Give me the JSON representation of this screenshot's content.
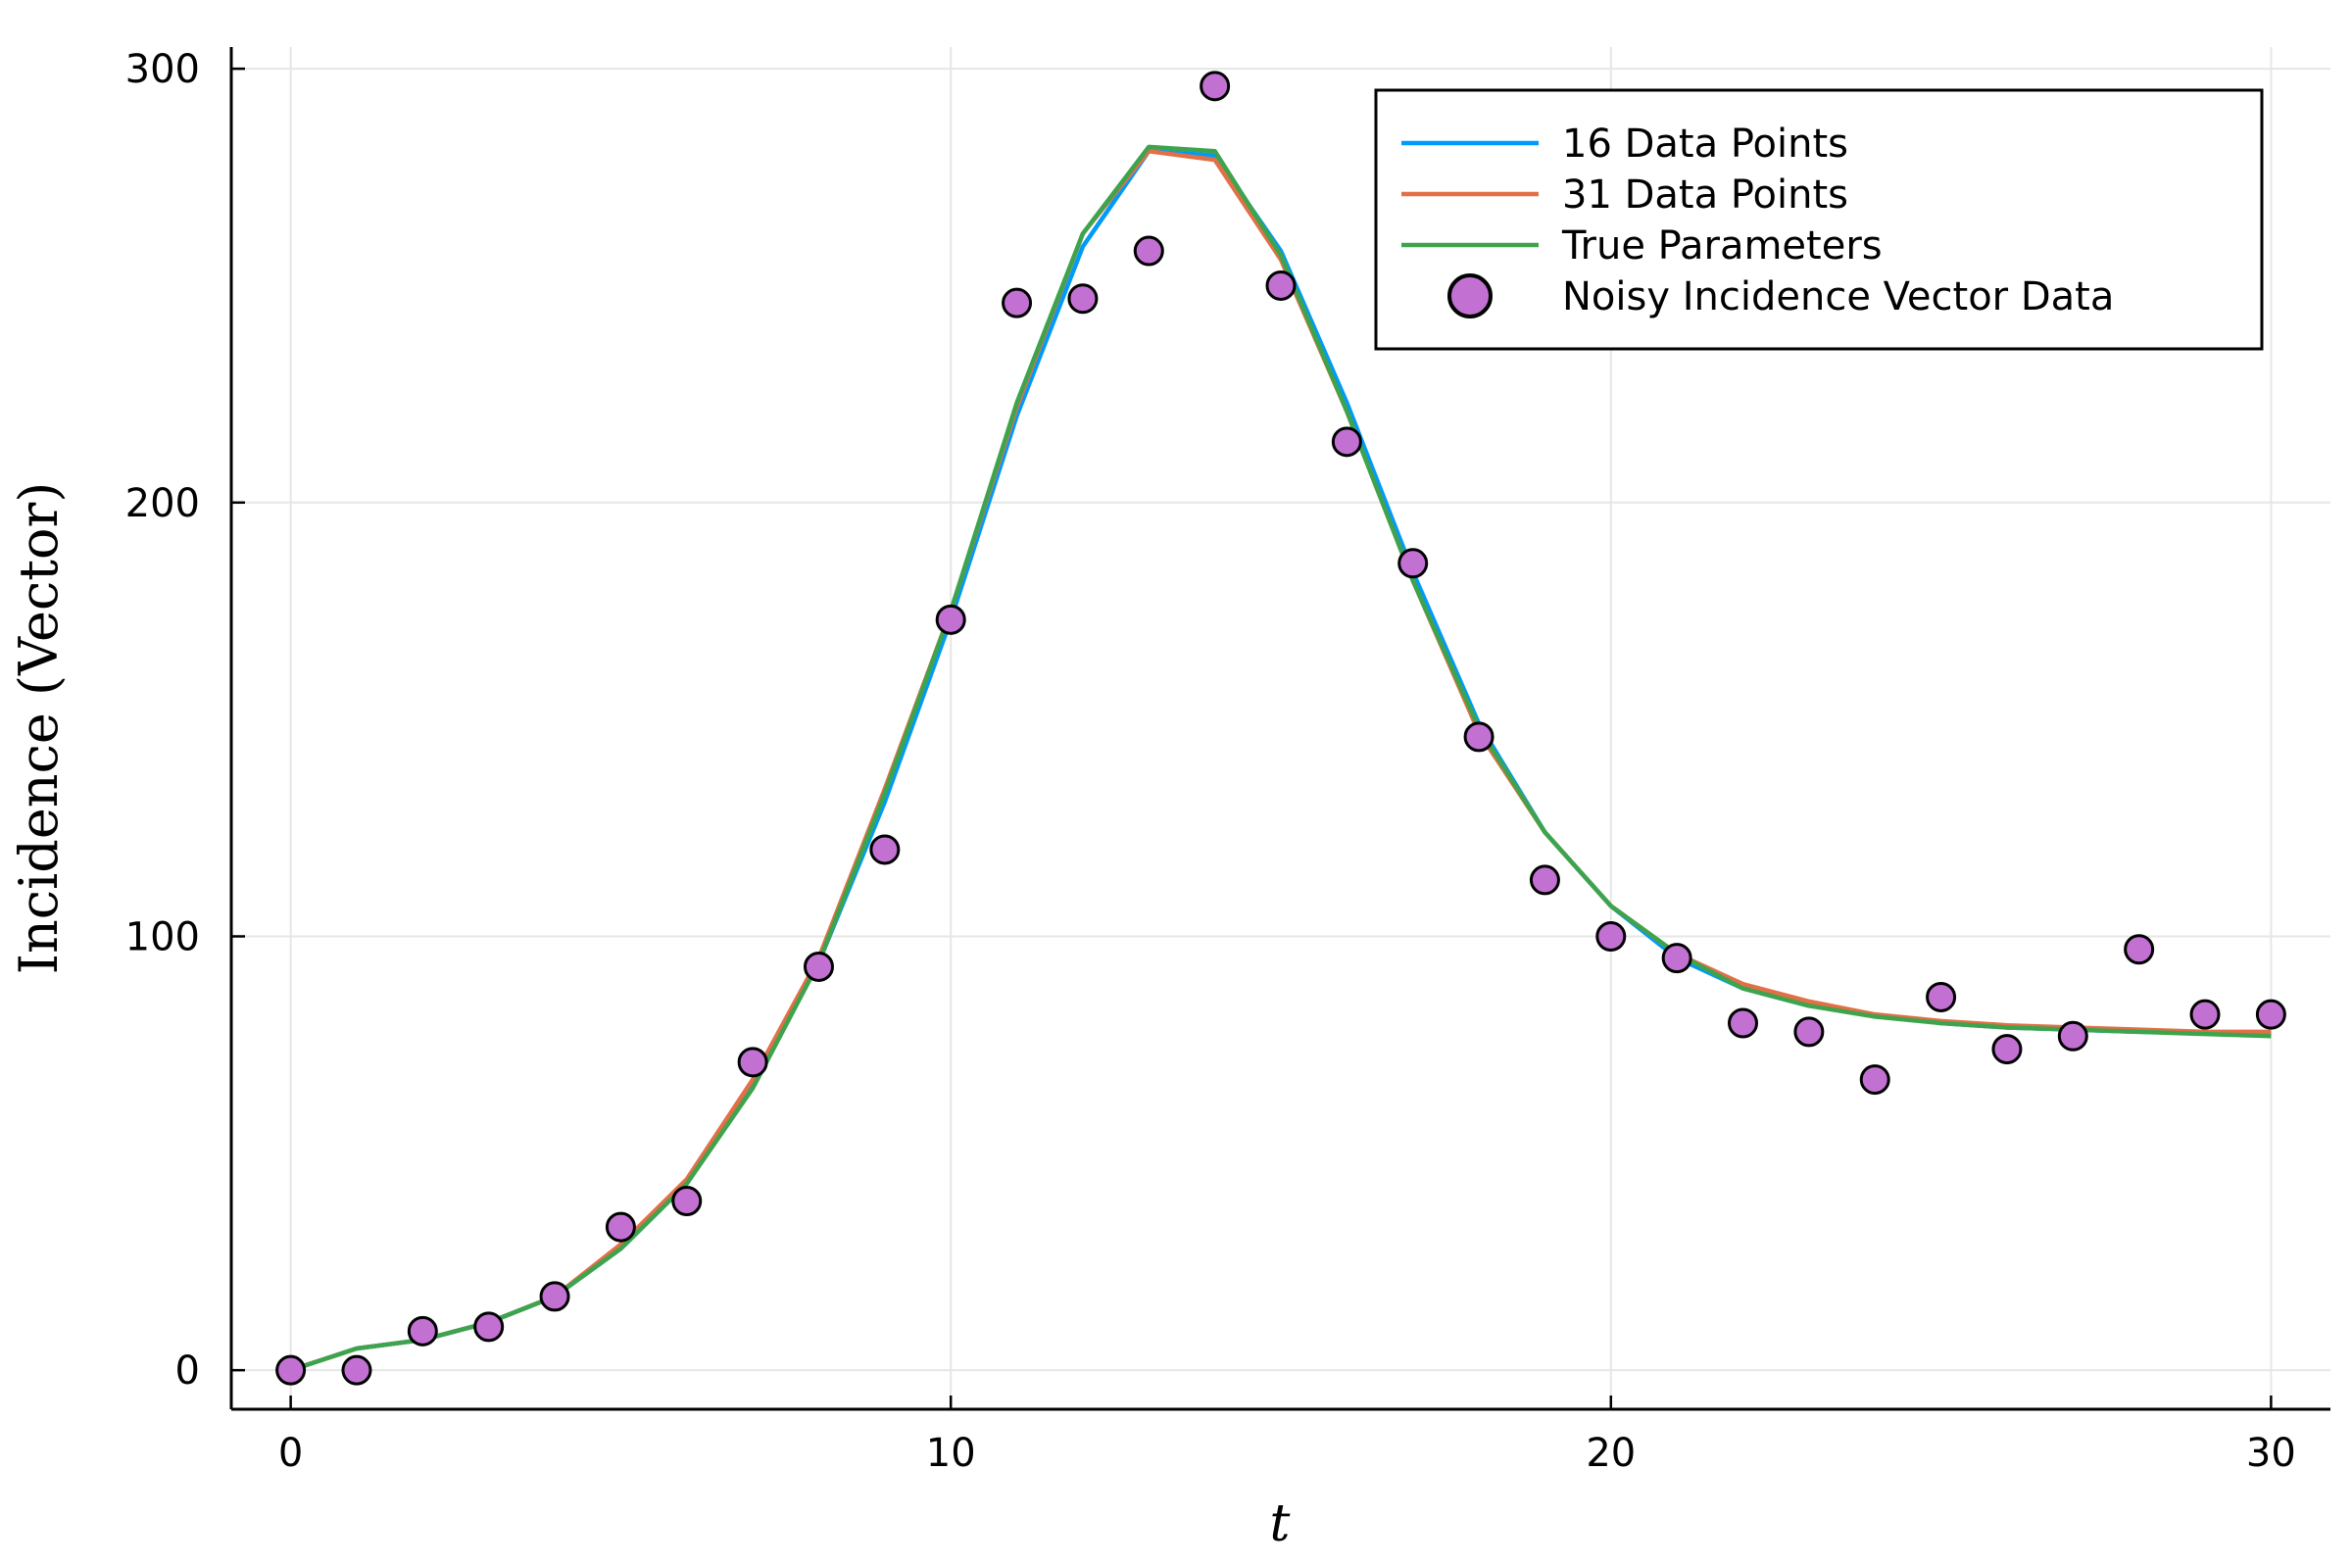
{
  "chart_data": {
    "type": "line",
    "xlabel": "t",
    "ylabel": "Incidence (Vector)",
    "xlim": [
      -0.9,
      30.9
    ],
    "ylim": [
      -9,
      305
    ],
    "xticks": [
      0,
      10,
      20,
      30
    ],
    "yticks": [
      0,
      100,
      200,
      300
    ],
    "grid": true,
    "legend_position": "top-right",
    "x": [
      0,
      1,
      2,
      3,
      4,
      5,
      6,
      7,
      8,
      9,
      10,
      11,
      12,
      13,
      14,
      15,
      16,
      17,
      18,
      19,
      20,
      21,
      22,
      23,
      24,
      25,
      26,
      27,
      28,
      29,
      30
    ],
    "series": [
      {
        "name": "16 Data Points",
        "kind": "line",
        "color": "#009AFA",
        "values": [
          0,
          5,
          7,
          11,
          17,
          28,
          43,
          66,
          94,
          131,
          173,
          220,
          259,
          281,
          280,
          258,
          223,
          184,
          149,
          124,
          107,
          95,
          88,
          84,
          82,
          80,
          79,
          78.5,
          78,
          77.8,
          77.5
        ]
      },
      {
        "name": "31 Data Points",
        "kind": "line",
        "color": "#E26F46",
        "values": [
          0,
          5,
          7,
          11,
          17,
          29,
          44,
          67,
          95,
          134,
          175,
          222,
          262,
          281,
          279,
          256,
          221,
          182,
          147,
          124,
          107,
          96,
          89,
          85,
          82,
          80.5,
          79.5,
          79,
          78.5,
          78,
          78
        ]
      },
      {
        "name": "True Parameters",
        "kind": "line",
        "color": "#3DA44D",
        "values": [
          0,
          5,
          7,
          11,
          17,
          28,
          43,
          65,
          94,
          133,
          175,
          223,
          262,
          282,
          281,
          257,
          221,
          182,
          148,
          124,
          107,
          96,
          88,
          84,
          81.5,
          80,
          79,
          78.5,
          78,
          77.5,
          77
        ]
      },
      {
        "name": "Noisy Incidence Vector Data",
        "kind": "scatter",
        "color": "#C271D2",
        "values": [
          0,
          0,
          9,
          10,
          17,
          33,
          39,
          71,
          93,
          120,
          173,
          246,
          247,
          258,
          296,
          250,
          214,
          186,
          146,
          113,
          100,
          95,
          80,
          78,
          67,
          86,
          74,
          77,
          97,
          82,
          82
        ]
      }
    ]
  }
}
